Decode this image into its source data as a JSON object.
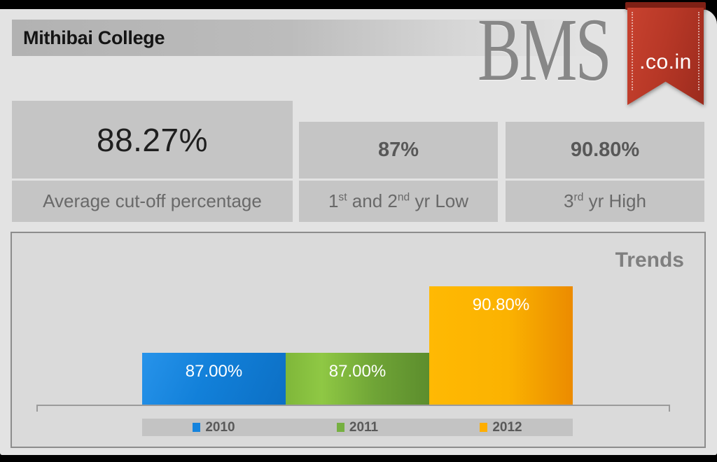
{
  "page": {
    "title": "Mithibai College",
    "brand": {
      "logo_text": "BMS",
      "ribbon_text": ".co.in"
    }
  },
  "stats": [
    {
      "value": "88.27%",
      "label": "Average cut-off percentage"
    },
    {
      "value": "87%",
      "label_parts": {
        "p1": "1",
        "s1": "st",
        "p2": " and 2",
        "s2": "nd",
        "p3": " yr Low"
      }
    },
    {
      "value": "90.80%",
      "label_parts": {
        "p1": "3",
        "s1": "rd",
        "p2": " yr High"
      }
    }
  ],
  "chart_data": {
    "type": "bar",
    "title": "Trends",
    "categories": [
      "2010",
      "2011",
      "2012"
    ],
    "values": [
      87.0,
      87.0,
      90.8
    ],
    "data_labels": [
      "87.00%",
      "87.00%",
      "90.80%"
    ],
    "ylim": [
      84,
      93.8
    ],
    "xlabel": "",
    "ylabel": "",
    "grid": false,
    "legend_position": "bottom",
    "series_colors": [
      "#1583DD",
      "#76B041",
      "#FFAE00"
    ]
  }
}
